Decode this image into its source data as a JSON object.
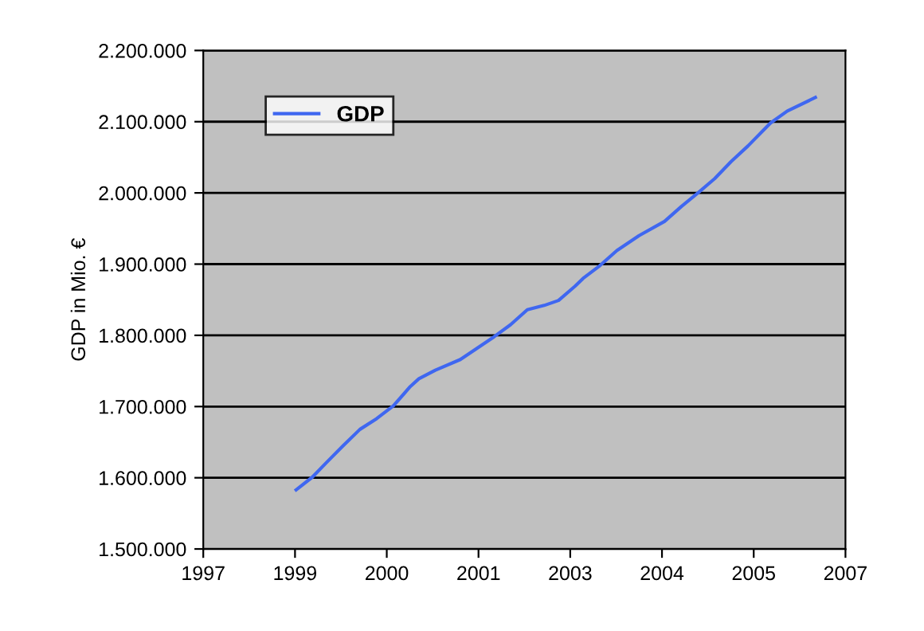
{
  "chart_data": {
    "type": "line",
    "ylabel": "GDP in Mio. €",
    "x": [
      "1999-02-01",
      "1999-05-01",
      "1999-07-15",
      "1999-10-15",
      "2000-01-15",
      "2000-04-15",
      "2000-07-15",
      "2000-10-15",
      "2000-12-01",
      "2001-03-01",
      "2001-07-15",
      "2001-10-15",
      "2002-01-15",
      "2002-04-15",
      "2002-07-15",
      "2002-10-15",
      "2003-01-01",
      "2003-04-01",
      "2003-05-15",
      "2003-08-15",
      "2003-11-15",
      "2004-03-15",
      "2004-08-01",
      "2004-11-01",
      "2005-01-30",
      "2005-05-01",
      "2005-07-30",
      "2005-10-30",
      "2006-03-01",
      "2006-06-01",
      "2006-11-01"
    ],
    "series": [
      {
        "name": "GDP",
        "color": "#3f67f0",
        "values": [
          1583000,
          1601000,
          1621000,
          1645000,
          1668000,
          1683000,
          1701000,
          1728000,
          1739000,
          1751000,
          1766000,
          1782000,
          1798000,
          1815000,
          1836000,
          1842000,
          1849000,
          1869000,
          1880000,
          1898000,
          1919000,
          1940000,
          1960000,
          1981000,
          2000000,
          2020000,
          2044000,
          2066000,
          2098000,
          2115000,
          2134000
        ]
      }
    ],
    "xlim": [
      "1997-09-13",
      "2007-04-14"
    ],
    "xticks": [
      {
        "value": "1997-09-13",
        "label": "1997"
      },
      {
        "value": "1999-01-26",
        "label": "1999"
      },
      {
        "value": "2000-06-09",
        "label": "2000"
      },
      {
        "value": "2001-10-22",
        "label": "2001"
      },
      {
        "value": "2003-03-06",
        "label": "2003"
      },
      {
        "value": "2004-07-18",
        "label": "2004"
      },
      {
        "value": "2005-11-30",
        "label": "2005"
      },
      {
        "value": "2007-04-14",
        "label": "2007"
      }
    ],
    "ylim": [
      1500000,
      2200000
    ],
    "yticks": [
      {
        "value": 1500000,
        "label": "1.500.000"
      },
      {
        "value": 1600000,
        "label": "1.600.000"
      },
      {
        "value": 1700000,
        "label": "1.700.000"
      },
      {
        "value": 1800000,
        "label": "1.800.000"
      },
      {
        "value": 1900000,
        "label": "1.900.000"
      },
      {
        "value": 2000000,
        "label": "2.000.000"
      },
      {
        "value": 2100000,
        "label": "2.100.000"
      },
      {
        "value": 2200000,
        "label": "2.200.000"
      }
    ],
    "grid": "y",
    "legend": "top left",
    "marker": "none",
    "line_style": "solid"
  }
}
